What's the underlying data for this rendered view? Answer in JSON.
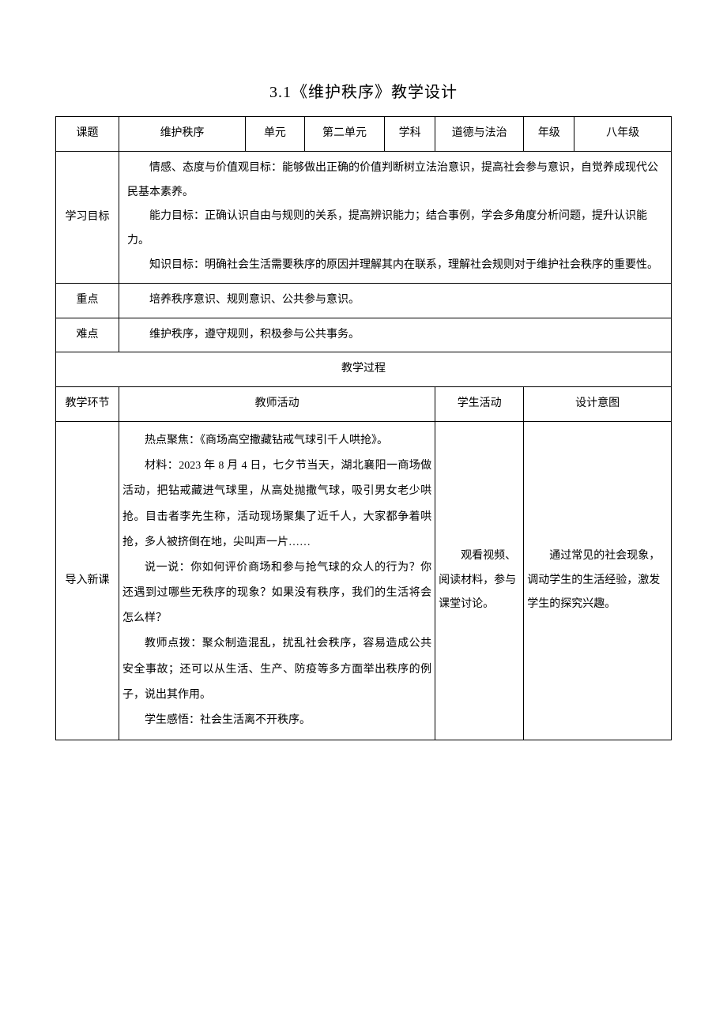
{
  "title": "3.1《维护秩序》教学设计",
  "header": {
    "labels": {
      "topic": "课题",
      "unit": "单元",
      "subject": "学科",
      "grade": "年级"
    },
    "values": {
      "topic": "维护秩序",
      "unit": "第二单元",
      "subject": "道德与法治",
      "grade": "八年级"
    }
  },
  "goals": {
    "label": "学习目标",
    "line1": "情感、态度与价值观目标：能够做出正确的价值判断树立法治意识，提高社会参与意识，自觉养成现代公民基本素养。",
    "line2": "能力目标：正确认识自由与规则的关系，提高辨识能力；结合事例，学会多角度分析问题，提升认识能力。",
    "line3": "知识目标：明确社会生活需要秩序的原因并理解其内在联系，理解社会规则对于维护社会秩序的重要性。"
  },
  "keypoint": {
    "label": "重点",
    "value": "培养秩序意识、规则意识、公共参与意识。"
  },
  "difficulty": {
    "label": "难点",
    "value": "维护秩序，遵守规则，积极参与公共事务。"
  },
  "process": {
    "title": "教学过程",
    "columns": {
      "stage": "教学环节",
      "teacher": "教师活动",
      "student": "学生活动",
      "intent": "设计意图"
    }
  },
  "intro": {
    "stage": "导入新课",
    "teacher": {
      "p1": "热点聚焦：《商场高空撒藏钻戒气球引千人哄抢》。",
      "p2": "材料：2023 年 8 月 4 日，七夕节当天，湖北襄阳一商场做活动，把钻戒藏进气球里，从高处抛撒气球，吸引男女老少哄抢。目击者李先生称，活动现场聚集了近千人，大家都争着哄抢，多人被挤倒在地，尖叫声一片……",
      "p3": "说一说：你如何评价商场和参与抢气球的众人的行为？你还遇到过哪些无秩序的现象？如果没有秩序，我们的生活将会怎么样？",
      "p4": "教师点拨：聚众制造混乱，扰乱社会秩序，容易造成公共安全事故；还可以从生活、生产、防疫等多方面举出秩序的例子，说出其作用。",
      "p5": "学生感悟：社会生活离不开秩序。"
    },
    "student": "观看视频、阅读材料，参与课堂讨论。",
    "intent": "通过常见的社会现象，调动学生的生活经验，激发学生的探究兴趣。"
  },
  "styling": {
    "text_color": "#000000",
    "border_color": "#000000",
    "background_color": "#ffffff",
    "title_fontsize": 20,
    "cell_fontsize": 14,
    "line_height": 2.2,
    "font_family": "SimSun"
  }
}
